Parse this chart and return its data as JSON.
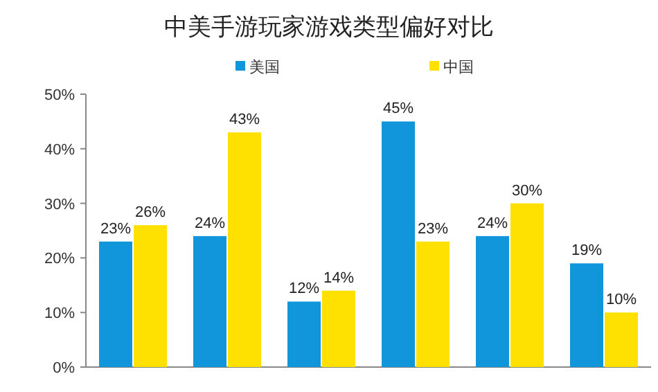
{
  "chart_data": {
    "type": "bar",
    "title": "中美手游玩家游戏类型偏好对比",
    "categories": [
      null,
      null,
      null,
      null,
      null,
      null
    ],
    "series": [
      {
        "name": "美国",
        "color": "#1296db",
        "values": [
          23,
          24,
          12,
          45,
          24,
          19
        ],
        "value_labels": [
          "23%",
          "24%",
          "12%",
          "45%",
          "24%",
          "19%"
        ]
      },
      {
        "name": "中国",
        "color": "#ffe100",
        "values": [
          26,
          43,
          14,
          23,
          30,
          10
        ],
        "value_labels": [
          "26%",
          "43%",
          "14%",
          "23%",
          "30%",
          "10%"
        ]
      }
    ],
    "ylim": [
      0,
      50
    ],
    "yticks": [
      {
        "value": 0,
        "label": "0%"
      },
      {
        "value": 10,
        "label": "10%"
      },
      {
        "value": 20,
        "label": "20%"
      },
      {
        "value": 30,
        "label": "30%"
      },
      {
        "value": 40,
        "label": "40%"
      },
      {
        "value": 50,
        "label": "50%"
      }
    ],
    "grid": false,
    "legend": "top"
  }
}
